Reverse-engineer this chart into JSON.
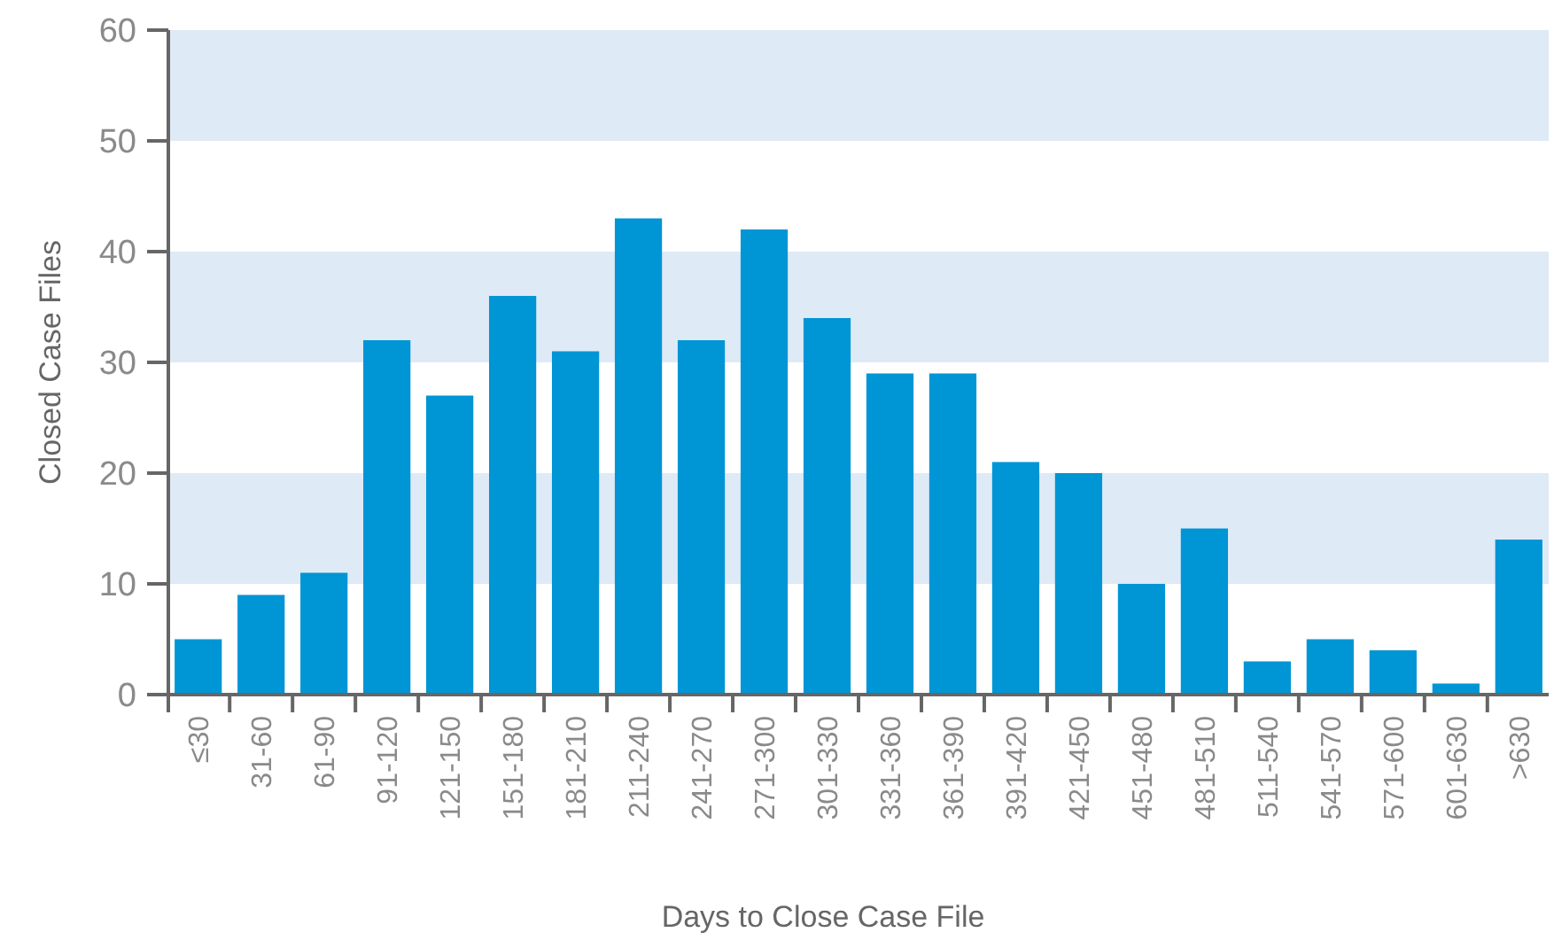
{
  "chart_data": {
    "type": "bar",
    "xlabel": "Days to Close Case File",
    "ylabel": "Closed Case Files",
    "categories": [
      "≤30",
      "31-60",
      "61-90",
      "91-120",
      "121-150",
      "151-180",
      "181-210",
      "211-240",
      "241-270",
      "271-300",
      "301-330",
      "331-360",
      "361-390",
      "391-420",
      "421-450",
      "451-480",
      "481-510",
      "511-540",
      "541-570",
      "571-600",
      "601-630",
      ">630"
    ],
    "values": [
      5,
      9,
      11,
      32,
      27,
      36,
      31,
      43,
      32,
      42,
      34,
      29,
      29,
      21,
      20,
      10,
      15,
      3,
      5,
      4,
      1,
      14
    ],
    "color": "#0095d5",
    "ylim": [
      0,
      60
    ],
    "yticks": [
      0,
      10,
      20,
      30,
      40,
      50,
      60
    ],
    "bands": [
      {
        "axis": "y",
        "from": 10,
        "to": 20,
        "color": "#deeaf6"
      },
      {
        "axis": "y",
        "from": 30,
        "to": 40,
        "color": "#deeaf6"
      },
      {
        "axis": "y",
        "from": 50,
        "to": 60,
        "color": "#deeaf6"
      }
    ]
  }
}
